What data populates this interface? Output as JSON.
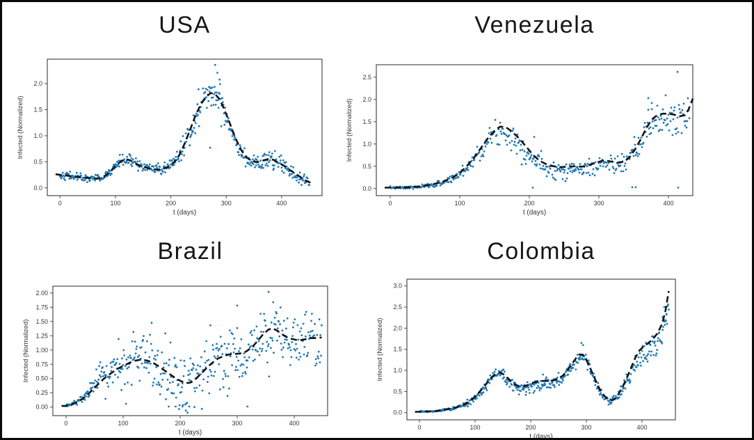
{
  "figure": {
    "background": "#ffffff",
    "border_color": "#0a0a0a",
    "dot_color": "#1f77b4",
    "trend_color": "#141414",
    "axis_color": "#4a4a4a",
    "tick_label_color": "#333333"
  },
  "chart_data": [
    {
      "title": "USA",
      "type": "scatter",
      "xlabel": "t (days)",
      "ylabel": "Infected (Normalized)",
      "x_ticks": [
        0,
        100,
        200,
        300,
        400
      ],
      "y_ticks": [
        0.0,
        0.5,
        1.0,
        1.5,
        2.0
      ],
      "y_tick_decimals": 1,
      "xlim": [
        -23,
        473
      ],
      "ylim": [
        -0.15,
        2.47
      ],
      "grid": false,
      "legend": "none",
      "trend": [
        [
          -8,
          0.26
        ],
        [
          0,
          0.25
        ],
        [
          10,
          0.24
        ],
        [
          20,
          0.22
        ],
        [
          30,
          0.21
        ],
        [
          40,
          0.2
        ],
        [
          50,
          0.19
        ],
        [
          60,
          0.18
        ],
        [
          70,
          0.18
        ],
        [
          80,
          0.22
        ],
        [
          90,
          0.3
        ],
        [
          100,
          0.42
        ],
        [
          110,
          0.51
        ],
        [
          118,
          0.55
        ],
        [
          126,
          0.53
        ],
        [
          135,
          0.48
        ],
        [
          145,
          0.42
        ],
        [
          155,
          0.39
        ],
        [
          165,
          0.36
        ],
        [
          175,
          0.35
        ],
        [
          185,
          0.36
        ],
        [
          195,
          0.4
        ],
        [
          205,
          0.48
        ],
        [
          215,
          0.62
        ],
        [
          225,
          0.85
        ],
        [
          235,
          1.12
        ],
        [
          245,
          1.4
        ],
        [
          255,
          1.62
        ],
        [
          265,
          1.76
        ],
        [
          272,
          1.82
        ],
        [
          280,
          1.8
        ],
        [
          288,
          1.7
        ],
        [
          296,
          1.52
        ],
        [
          305,
          1.28
        ],
        [
          315,
          1.0
        ],
        [
          325,
          0.76
        ],
        [
          335,
          0.6
        ],
        [
          345,
          0.52
        ],
        [
          355,
          0.49
        ],
        [
          365,
          0.52
        ],
        [
          375,
          0.55
        ],
        [
          385,
          0.54
        ],
        [
          395,
          0.48
        ],
        [
          405,
          0.42
        ],
        [
          415,
          0.34
        ],
        [
          425,
          0.27
        ],
        [
          435,
          0.2
        ],
        [
          445,
          0.13
        ],
        [
          452,
          0.1
        ]
      ],
      "scatter_model": {
        "t_from": 0,
        "t_to": 450,
        "step": 1,
        "seed": 42,
        "sigma": [
          [
            0,
            0.035
          ],
          [
            80,
            0.04
          ],
          [
            110,
            0.06
          ],
          [
            150,
            0.05
          ],
          [
            200,
            0.06
          ],
          [
            230,
            0.13
          ],
          [
            265,
            0.16
          ],
          [
            290,
            0.17
          ],
          [
            310,
            0.12
          ],
          [
            335,
            0.07
          ],
          [
            360,
            0.08
          ],
          [
            385,
            0.08
          ],
          [
            420,
            0.06
          ],
          [
            450,
            0.05
          ]
        ],
        "bias": [
          [
            0,
            0
          ],
          [
            250,
            0
          ],
          [
            290,
            -0.02
          ],
          [
            450,
            -0.02
          ]
        ]
      },
      "outliers": [
        [
          280,
          2.36
        ],
        [
          284,
          2.21
        ],
        [
          288,
          2.08
        ],
        [
          271,
          0.77
        ]
      ]
    },
    {
      "title": "Venezuela",
      "type": "scatter",
      "xlabel": "t (days)",
      "ylabel": "Infected (Normalized)",
      "x_ticks": [
        0,
        100,
        200,
        300,
        400
      ],
      "y_ticks": [
        0.0,
        0.5,
        1.0,
        1.5,
        2.0,
        2.5
      ],
      "y_tick_decimals": 1,
      "xlim": [
        -20,
        435
      ],
      "ylim": [
        -0.16,
        2.78
      ],
      "grid": false,
      "legend": "none",
      "trend": [
        [
          -8,
          0.02
        ],
        [
          0,
          0.02
        ],
        [
          15,
          0.02
        ],
        [
          30,
          0.03
        ],
        [
          45,
          0.05
        ],
        [
          60,
          0.09
        ],
        [
          75,
          0.15
        ],
        [
          90,
          0.25
        ],
        [
          100,
          0.35
        ],
        [
          110,
          0.5
        ],
        [
          120,
          0.68
        ],
        [
          130,
          0.9
        ],
        [
          140,
          1.12
        ],
        [
          150,
          1.3
        ],
        [
          158,
          1.39
        ],
        [
          166,
          1.38
        ],
        [
          175,
          1.28
        ],
        [
          185,
          1.13
        ],
        [
          195,
          0.95
        ],
        [
          205,
          0.76
        ],
        [
          215,
          0.62
        ],
        [
          225,
          0.54
        ],
        [
          235,
          0.5
        ],
        [
          245,
          0.48
        ],
        [
          255,
          0.49
        ],
        [
          265,
          0.5
        ],
        [
          275,
          0.49
        ],
        [
          285,
          0.52
        ],
        [
          295,
          0.58
        ],
        [
          305,
          0.62
        ],
        [
          312,
          0.62
        ],
        [
          320,
          0.6
        ],
        [
          328,
          0.58
        ],
        [
          336,
          0.6
        ],
        [
          344,
          0.7
        ],
        [
          352,
          0.88
        ],
        [
          360,
          1.1
        ],
        [
          368,
          1.35
        ],
        [
          376,
          1.55
        ],
        [
          384,
          1.65
        ],
        [
          392,
          1.68
        ],
        [
          400,
          1.68
        ],
        [
          408,
          1.66
        ],
        [
          416,
          1.62
        ],
        [
          424,
          1.65
        ],
        [
          429,
          1.78
        ],
        [
          435,
          2.02
        ]
      ],
      "scatter_model": {
        "t_from": 0,
        "t_to": 430,
        "step": 1,
        "seed": 7,
        "sigma": [
          [
            0,
            0.012
          ],
          [
            50,
            0.02
          ],
          [
            80,
            0.04
          ],
          [
            100,
            0.07
          ],
          [
            130,
            0.1
          ],
          [
            150,
            0.13
          ],
          [
            175,
            0.17
          ],
          [
            200,
            0.14
          ],
          [
            220,
            0.11
          ],
          [
            250,
            0.1
          ],
          [
            300,
            0.1
          ],
          [
            330,
            0.09
          ],
          [
            350,
            0.14
          ],
          [
            365,
            0.2
          ],
          [
            430,
            0.2
          ]
        ],
        "bias": [
          [
            0,
            0
          ],
          [
            130,
            -0.03
          ],
          [
            155,
            -0.1
          ],
          [
            190,
            -0.12
          ],
          [
            215,
            -0.06
          ],
          [
            240,
            -0.06
          ],
          [
            300,
            -0.07
          ],
          [
            330,
            -0.04
          ],
          [
            355,
            -0.08
          ],
          [
            430,
            -0.12
          ]
        ]
      },
      "outliers": [
        [
          205,
          0.02
        ],
        [
          207,
          1.16
        ],
        [
          348,
          0.03
        ],
        [
          353,
          0.03
        ],
        [
          414,
          0.02
        ],
        [
          413,
          2.62
        ],
        [
          371,
          2.03
        ],
        [
          376,
          1.92
        ]
      ]
    },
    {
      "title": "Brazil",
      "type": "scatter",
      "xlabel": "t (days)",
      "ylabel": "Infected (Normalized)",
      "x_ticks": [
        0,
        100,
        200,
        300,
        400
      ],
      "y_ticks": [
        0.0,
        0.25,
        0.5,
        0.75,
        1.0,
        1.25,
        1.5,
        1.75,
        2.0
      ],
      "y_tick_decimals": 2,
      "xlim": [
        -23.2,
        458.5
      ],
      "ylim": [
        -0.15,
        2.12
      ],
      "grid": false,
      "legend": "none",
      "trend": [
        [
          -8,
          0.02
        ],
        [
          0,
          0.02
        ],
        [
          10,
          0.05
        ],
        [
          20,
          0.09
        ],
        [
          30,
          0.15
        ],
        [
          40,
          0.24
        ],
        [
          50,
          0.34
        ],
        [
          60,
          0.44
        ],
        [
          70,
          0.53
        ],
        [
          80,
          0.6
        ],
        [
          90,
          0.67
        ],
        [
          100,
          0.72
        ],
        [
          110,
          0.77
        ],
        [
          120,
          0.81
        ],
        [
          130,
          0.83
        ],
        [
          140,
          0.82
        ],
        [
          150,
          0.79
        ],
        [
          160,
          0.73
        ],
        [
          170,
          0.66
        ],
        [
          180,
          0.59
        ],
        [
          190,
          0.52
        ],
        [
          200,
          0.46
        ],
        [
          210,
          0.42
        ],
        [
          218,
          0.43
        ],
        [
          226,
          0.48
        ],
        [
          234,
          0.56
        ],
        [
          242,
          0.64
        ],
        [
          250,
          0.72
        ],
        [
          258,
          0.79
        ],
        [
          266,
          0.85
        ],
        [
          275,
          0.89
        ],
        [
          285,
          0.92
        ],
        [
          295,
          0.93
        ],
        [
          305,
          0.94
        ],
        [
          315,
          0.97
        ],
        [
          325,
          1.04
        ],
        [
          335,
          1.15
        ],
        [
          345,
          1.27
        ],
        [
          355,
          1.36
        ],
        [
          362,
          1.38
        ],
        [
          370,
          1.34
        ],
        [
          378,
          1.28
        ],
        [
          386,
          1.23
        ],
        [
          394,
          1.2
        ],
        [
          402,
          1.18
        ],
        [
          410,
          1.17
        ],
        [
          420,
          1.19
        ],
        [
          430,
          1.21
        ],
        [
          440,
          1.21
        ],
        [
          448,
          1.22
        ]
      ],
      "scatter_model": {
        "t_from": 0,
        "t_to": 448,
        "step": 1,
        "seed": 13,
        "sigma": [
          [
            0,
            0.008
          ],
          [
            20,
            0.02
          ],
          [
            40,
            0.07
          ],
          [
            60,
            0.16
          ],
          [
            80,
            0.24
          ],
          [
            100,
            0.28
          ],
          [
            200,
            0.26
          ],
          [
            260,
            0.28
          ],
          [
            320,
            0.3
          ],
          [
            448,
            0.3
          ]
        ],
        "bias": [
          [
            0,
            0
          ],
          [
            60,
            0.02
          ],
          [
            120,
            0
          ],
          [
            200,
            -0.03
          ],
          [
            300,
            -0.04
          ],
          [
            380,
            -0.05
          ],
          [
            448,
            -0.08
          ]
        ]
      },
      "outliers": [
        [
          180,
          0.01
        ],
        [
          192,
          0.01
        ],
        [
          204,
          0.01
        ],
        [
          216,
          0.01
        ],
        [
          225,
          0.0
        ],
        [
          318,
          0.01
        ],
        [
          355,
          2.02
        ],
        [
          300,
          1.78
        ]
      ]
    },
    {
      "title": "Colombia",
      "type": "scatter",
      "xlabel": "t (days)",
      "ylabel": "Infected (Normalized)",
      "x_ticks": [
        0,
        100,
        200,
        300,
        400
      ],
      "y_ticks": [
        0.0,
        0.5,
        1.0,
        1.5,
        2.0,
        2.5,
        3.0
      ],
      "y_tick_decimals": 1,
      "xlim": [
        -22.5,
        460
      ],
      "ylim": [
        -0.17,
        3.16
      ],
      "grid": false,
      "legend": "none",
      "trend": [
        [
          -8,
          0.02
        ],
        [
          0,
          0.02
        ],
        [
          15,
          0.03
        ],
        [
          30,
          0.04
        ],
        [
          45,
          0.07
        ],
        [
          60,
          0.1
        ],
        [
          75,
          0.16
        ],
        [
          90,
          0.26
        ],
        [
          100,
          0.38
        ],
        [
          110,
          0.52
        ],
        [
          120,
          0.68
        ],
        [
          130,
          0.84
        ],
        [
          138,
          0.93
        ],
        [
          145,
          0.95
        ],
        [
          152,
          0.9
        ],
        [
          160,
          0.8
        ],
        [
          170,
          0.68
        ],
        [
          180,
          0.62
        ],
        [
          190,
          0.63
        ],
        [
          200,
          0.68
        ],
        [
          210,
          0.73
        ],
        [
          220,
          0.75
        ],
        [
          230,
          0.75
        ],
        [
          240,
          0.76
        ],
        [
          250,
          0.8
        ],
        [
          258,
          0.88
        ],
        [
          266,
          1.0
        ],
        [
          274,
          1.15
        ],
        [
          282,
          1.3
        ],
        [
          288,
          1.38
        ],
        [
          294,
          1.37
        ],
        [
          300,
          1.25
        ],
        [
          308,
          1.02
        ],
        [
          316,
          0.78
        ],
        [
          324,
          0.55
        ],
        [
          332,
          0.4
        ],
        [
          340,
          0.3
        ],
        [
          348,
          0.3
        ],
        [
          356,
          0.4
        ],
        [
          364,
          0.58
        ],
        [
          372,
          0.8
        ],
        [
          380,
          1.05
        ],
        [
          388,
          1.3
        ],
        [
          396,
          1.48
        ],
        [
          404,
          1.58
        ],
        [
          412,
          1.65
        ],
        [
          420,
          1.75
        ],
        [
          428,
          1.88
        ],
        [
          436,
          2.1
        ],
        [
          442,
          2.4
        ],
        [
          448,
          2.88
        ]
      ],
      "scatter_model": {
        "t_from": 0,
        "t_to": 448,
        "step": 1,
        "seed": 99,
        "sigma": [
          [
            0,
            0.008
          ],
          [
            50,
            0.012
          ],
          [
            80,
            0.03
          ],
          [
            100,
            0.05
          ],
          [
            130,
            0.07
          ],
          [
            170,
            0.08
          ],
          [
            220,
            0.09
          ],
          [
            260,
            0.08
          ],
          [
            300,
            0.08
          ],
          [
            330,
            0.06
          ],
          [
            355,
            0.05
          ],
          [
            380,
            0.09
          ],
          [
            400,
            0.14
          ],
          [
            448,
            0.18
          ]
        ],
        "bias": [
          [
            0,
            0
          ],
          [
            140,
            -0.02
          ],
          [
            175,
            -0.08
          ],
          [
            230,
            -0.08
          ],
          [
            265,
            -0.04
          ],
          [
            300,
            -0.06
          ],
          [
            345,
            -0.02
          ],
          [
            380,
            -0.08
          ],
          [
            410,
            -0.2
          ],
          [
            448,
            -0.3
          ]
        ]
      },
      "outliers": [
        [
          291,
          1.65
        ],
        [
          294,
          1.6
        ],
        [
          440,
          2.5
        ],
        [
          444,
          2.32
        ],
        [
          437,
          2.26
        ]
      ]
    }
  ]
}
